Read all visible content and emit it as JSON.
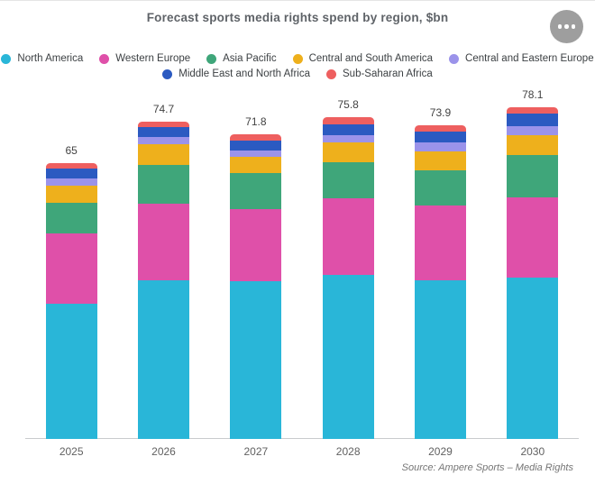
{
  "header": {
    "title": "Forecast sports media rights spend by region, $bn",
    "menu_icon": "ellipsis-icon"
  },
  "source": "Source:  Ampere Sports – Media Rights",
  "chart_data": {
    "type": "bar",
    "stacked": true,
    "title": "Forecast sports media rights spend by region, $bn",
    "xlabel": "",
    "ylabel": "",
    "ylim": [
      0,
      80
    ],
    "grid": false,
    "legend_position": "top",
    "legend_row_break": 5,
    "categories": [
      "2025",
      "2026",
      "2027",
      "2028",
      "2029",
      "2030"
    ],
    "series": [
      {
        "name": "North America",
        "color": "#29b6d8",
        "values": [
          31.9,
          37.4,
          37.1,
          38.6,
          37.3,
          38.1
        ]
      },
      {
        "name": "Western Europe",
        "color": "#df50a9",
        "values": [
          16.5,
          18.0,
          17.0,
          18.1,
          17.8,
          18.9
        ]
      },
      {
        "name": "Asia Pacific",
        "color": "#3fa67a",
        "values": [
          7.3,
          9.2,
          8.6,
          8.6,
          8.2,
          9.9
        ]
      },
      {
        "name": "Central and South America",
        "color": "#eeb01c",
        "values": [
          4.0,
          4.8,
          3.7,
          4.5,
          4.5,
          4.6
        ]
      },
      {
        "name": "Central and Eastern Europe",
        "color": "#9b93ea",
        "values": [
          1.6,
          1.8,
          1.6,
          1.8,
          2.1,
          2.2
        ]
      },
      {
        "name": "Middle East and North Africa",
        "color": "#2b5ac1",
        "values": [
          2.5,
          2.4,
          2.4,
          2.6,
          2.6,
          2.9
        ]
      },
      {
        "name": "Sub-Saharan Africa",
        "color": "#ee5f5f",
        "values": [
          1.2,
          1.1,
          1.4,
          1.6,
          1.4,
          1.5
        ]
      }
    ],
    "totals_labels": [
      "65",
      "74.7",
      "71.8",
      "75.8",
      "73.9",
      "78.1"
    ]
  }
}
